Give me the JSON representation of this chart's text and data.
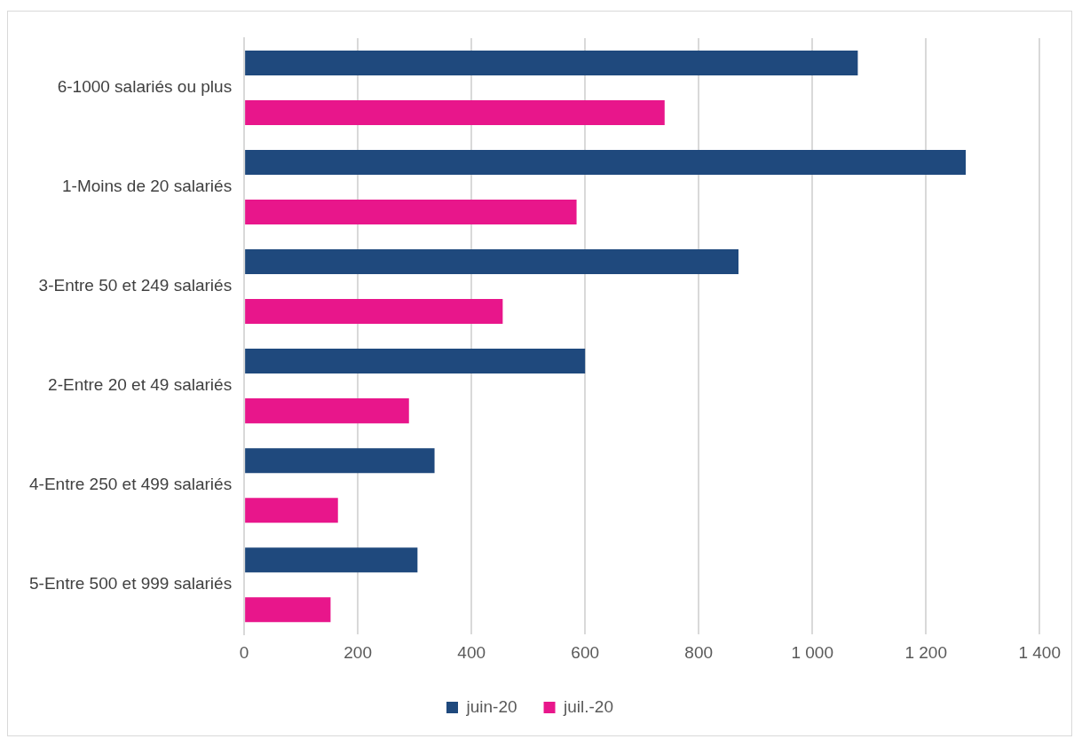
{
  "chart_data": {
    "type": "bar",
    "orientation": "horizontal",
    "categories": [
      "6-1000 salariés ou plus",
      "1-Moins de 20 salariés",
      "3-Entre 50 et 249 salariés",
      "2-Entre 20 et 49 salariés",
      "4-Entre 250 et 499 salariés",
      "5-Entre 500 et 999 salariés"
    ],
    "series": [
      {
        "name": "juin-20",
        "color": "#1f497d",
        "values": [
          1080,
          1270,
          870,
          600,
          335,
          305
        ]
      },
      {
        "name": "juil.-20",
        "color": "#e8168b",
        "values": [
          740,
          585,
          455,
          290,
          165,
          152
        ]
      }
    ],
    "xlim": [
      0,
      1400
    ],
    "xticks": [
      0,
      200,
      400,
      600,
      800,
      {
        "value": 1000,
        "label": "1 000"
      },
      {
        "value": 1200,
        "label": "1 200"
      },
      {
        "value": 1400,
        "label": "1 400"
      }
    ],
    "grid": "x",
    "legend": "bottom"
  }
}
